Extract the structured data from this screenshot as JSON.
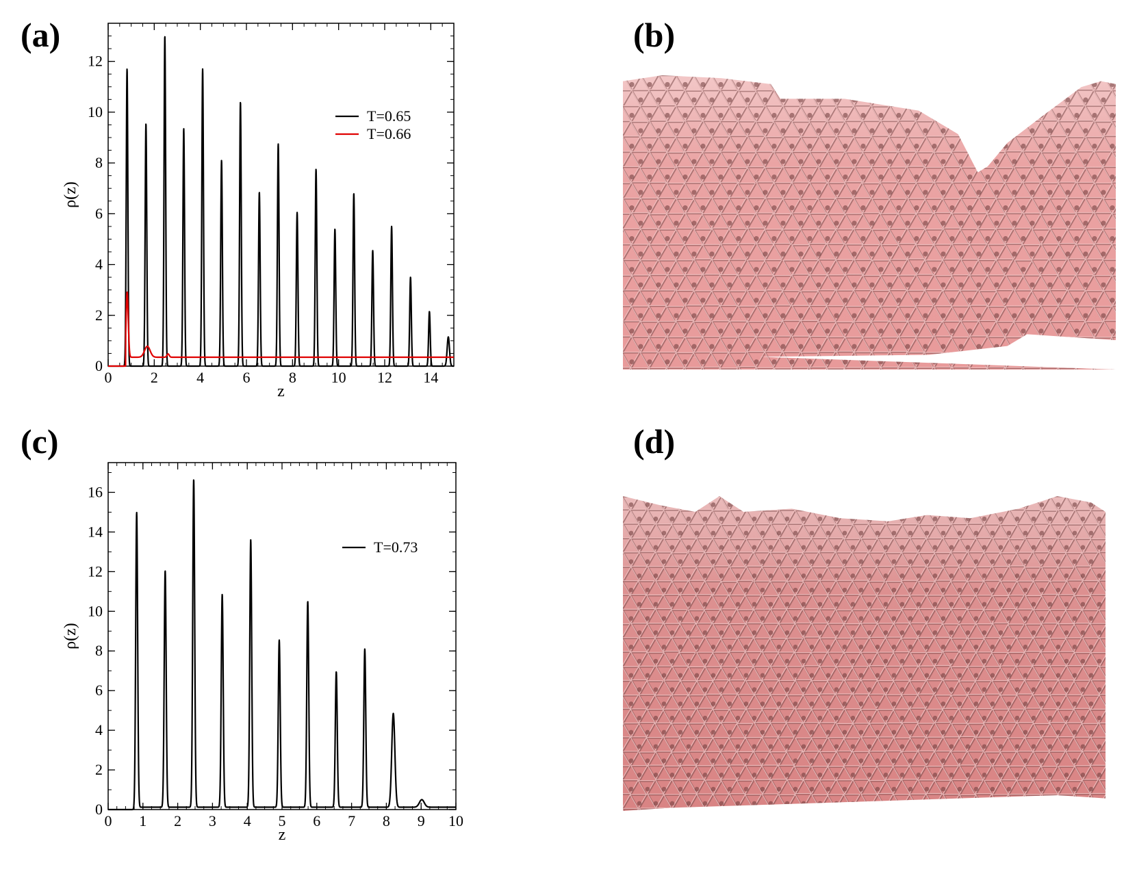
{
  "panels": {
    "a": {
      "label": "(a)"
    },
    "b": {
      "label": "(b)"
    },
    "c": {
      "label": "(c)"
    },
    "d": {
      "label": "(d)"
    }
  },
  "renders": {
    "b": {
      "description_icon": "molecular-structure-render",
      "color": "#e89a9a"
    },
    "d": {
      "description_icon": "molecular-structure-render",
      "color": "#d98484"
    }
  },
  "chart_data": [
    {
      "id": "a",
      "type": "line",
      "title": "",
      "xlabel": "z",
      "ylabel": "ρ(z)",
      "xlim": [
        0,
        15
      ],
      "ylim": [
        0,
        13.5
      ],
      "xticks": [
        0,
        2,
        4,
        6,
        8,
        10,
        12,
        14
      ],
      "yticks": [
        0,
        2,
        4,
        6,
        8,
        10,
        12
      ],
      "grid": false,
      "legend_position": "top-right",
      "series": [
        {
          "name": "T=0.65",
          "color": "#000000",
          "peaks": [
            {
              "x": 0.82,
              "y": 11.7
            },
            {
              "x": 1.64,
              "y": 9.55
            },
            {
              "x": 2.46,
              "y": 13.0
            },
            {
              "x": 3.28,
              "y": 9.35
            },
            {
              "x": 4.1,
              "y": 11.7
            },
            {
              "x": 4.92,
              "y": 8.1
            },
            {
              "x": 5.74,
              "y": 10.4
            },
            {
              "x": 6.56,
              "y": 6.85
            },
            {
              "x": 7.38,
              "y": 8.75
            },
            {
              "x": 8.2,
              "y": 6.05
            },
            {
              "x": 9.02,
              "y": 7.75
            },
            {
              "x": 9.84,
              "y": 5.4
            },
            {
              "x": 10.66,
              "y": 6.8
            },
            {
              "x": 11.48,
              "y": 4.55
            },
            {
              "x": 12.3,
              "y": 5.5
            },
            {
              "x": 13.12,
              "y": 3.5
            },
            {
              "x": 13.94,
              "y": 2.15
            },
            {
              "x": 14.76,
              "y": 1.15
            }
          ]
        },
        {
          "name": "T=0.66",
          "color": "#e00000",
          "peaks": [
            {
              "x": 0.82,
              "y": 2.95
            },
            {
              "x": 1.7,
              "y": 0.78
            },
            {
              "x": 2.6,
              "y": 0.48
            }
          ],
          "plateau": 0.35
        }
      ]
    },
    {
      "id": "c",
      "type": "line",
      "title": "",
      "xlabel": "z",
      "ylabel": "ρ(z)",
      "xlim": [
        0,
        10
      ],
      "ylim": [
        0,
        17.5
      ],
      "xticks": [
        0,
        1,
        2,
        3,
        4,
        5,
        6,
        7,
        8,
        9,
        10
      ],
      "yticks": [
        0,
        2,
        4,
        6,
        8,
        10,
        12,
        14,
        16
      ],
      "grid": false,
      "legend_position": "top-right",
      "series": [
        {
          "name": "T=0.73",
          "color": "#000000",
          "peaks": [
            {
              "x": 0.82,
              "y": 15.0
            },
            {
              "x": 1.64,
              "y": 12.05
            },
            {
              "x": 2.46,
              "y": 16.65
            },
            {
              "x": 3.28,
              "y": 10.85
            },
            {
              "x": 4.1,
              "y": 13.6
            },
            {
              "x": 4.92,
              "y": 8.55
            },
            {
              "x": 5.74,
              "y": 10.5
            },
            {
              "x": 6.56,
              "y": 6.95
            },
            {
              "x": 7.38,
              "y": 8.1
            },
            {
              "x": 8.2,
              "y": 4.85
            },
            {
              "x": 9.02,
              "y": 0.5
            }
          ],
          "plateau": 0.12
        }
      ]
    }
  ]
}
